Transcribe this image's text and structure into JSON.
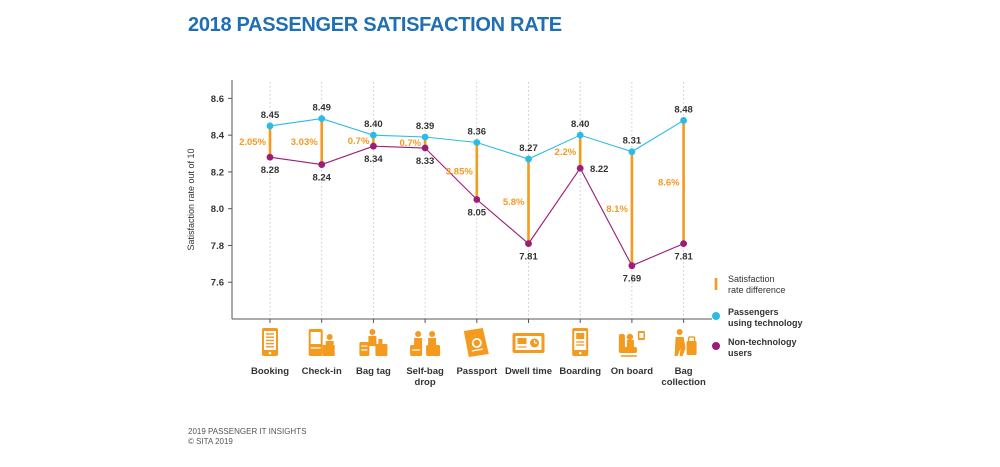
{
  "title": "2018 PASSENGER SATISFACTION RATE",
  "footer": {
    "line1": "2019 PASSENGER IT INSIGHTS",
    "line2": "© SITA 2019"
  },
  "colors": {
    "title": "#1f6fb3",
    "technology": "#2bbbe9",
    "non_technology": "#9b1c79",
    "difference": "#f39a1f",
    "icon": "#f39a1f"
  },
  "chart_data": {
    "type": "line",
    "title": "",
    "ylabel": "Satisfaction rate out of 10",
    "xlabel": "",
    "ylim": [
      7.4,
      8.7
    ],
    "yticks": [
      7.6,
      7.8,
      8.0,
      8.2,
      8.4,
      8.6
    ],
    "ytick_labels": [
      "7.6",
      "7.8",
      "8.0",
      "8.2",
      "8.4",
      "8.6"
    ],
    "grid": "vertical dotted lines per category",
    "legend_position": "right",
    "categories": [
      "Booking",
      "Check-in",
      "Bag tag",
      "Self-bag drop",
      "Passport",
      "Dwell time",
      "Boarding",
      "On board",
      "Bag collection"
    ],
    "category_icons": [
      "phone-booking-icon",
      "check-in-kiosk-icon",
      "bag-tag-icon",
      "self-bag-drop-icon",
      "passport-icon",
      "dwell-time-screen-icon",
      "boarding-pass-phone-icon",
      "on-board-seat-icon",
      "bag-collection-icon"
    ],
    "series": [
      {
        "name": "Passengers using technology",
        "key": "technology",
        "values": [
          8.45,
          8.49,
          8.4,
          8.39,
          8.36,
          8.27,
          8.4,
          8.31,
          8.48
        ],
        "labels": [
          "8.45",
          "8.49",
          "8.40",
          "8.39",
          "8.36",
          "8.27",
          "8.40",
          "8.31",
          "8.48"
        ]
      },
      {
        "name": "Non-technology users",
        "key": "non_technology",
        "values": [
          8.28,
          8.24,
          8.34,
          8.33,
          8.05,
          7.81,
          8.22,
          7.69,
          7.81
        ],
        "labels": [
          "8.28",
          "8.24",
          "8.34",
          "8.33",
          "8.05",
          "7.81",
          "8.22",
          "7.69",
          "7.81"
        ]
      }
    ],
    "difference_labels": [
      "2.05%",
      "3.03%",
      "0.7%",
      "0.7%",
      "3.85%",
      "5.8%",
      "2.2%",
      "8.1%",
      "8.6%"
    ],
    "legend": [
      {
        "key": "difference",
        "label_lines": [
          "Satisfaction",
          "rate difference"
        ]
      },
      {
        "key": "technology",
        "label_lines": [
          "Passengers",
          "using technology"
        ]
      },
      {
        "key": "non_technology",
        "label_lines": [
          "Non-technology",
          "users"
        ]
      }
    ]
  }
}
